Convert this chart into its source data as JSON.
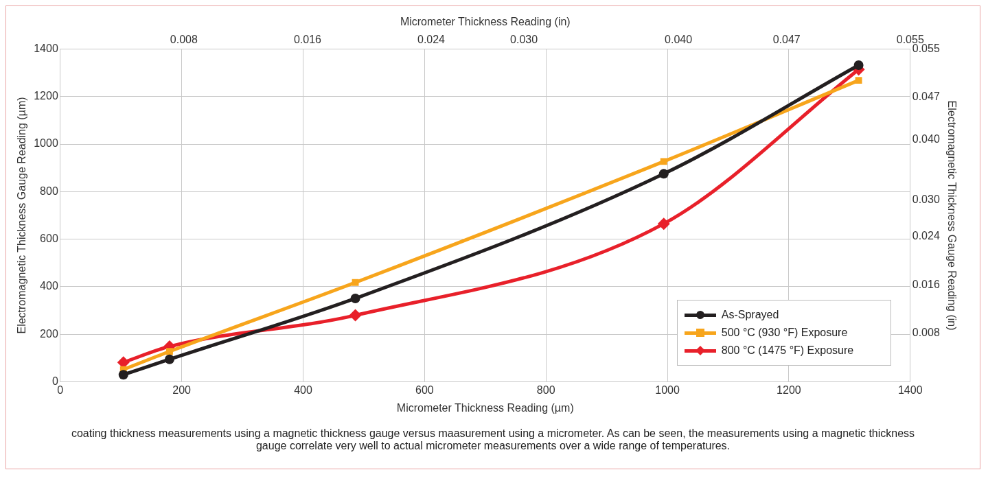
{
  "chart_data": {
    "type": "line",
    "xlabel": "Micrometer Thickness Reading (µm)",
    "ylabel": "Electromagnetic Thickness Gauge Reading (µm)",
    "x2label": "Micrometer Thickness Reading (in)",
    "y2label": "Electromagnetic Thickness Gauge Reading (in)",
    "xlim": [
      0,
      1400
    ],
    "xticks": [
      0,
      200,
      400,
      600,
      800,
      1000,
      1200,
      1400
    ],
    "ylim": [
      0,
      1400
    ],
    "yticks": [
      0,
      200,
      400,
      600,
      800,
      1000,
      1200,
      1400
    ],
    "x2lim": [
      0,
      0.055
    ],
    "x2ticks": [
      {
        "value": 0.008,
        "label": "0.008"
      },
      {
        "value": 0.016,
        "label": "0.016"
      },
      {
        "value": 0.024,
        "label": "0.024"
      },
      {
        "value": 0.03,
        "label": "0.030"
      },
      {
        "value": 0.04,
        "label": "0.040"
      },
      {
        "value": 0.047,
        "label": "0.047"
      },
      {
        "value": 0.055,
        "label": "0.055"
      }
    ],
    "y2lim": [
      0,
      0.055
    ],
    "y2ticks": [
      {
        "value": 0.008,
        "label": "0.008"
      },
      {
        "value": 0.016,
        "label": "0.016"
      },
      {
        "value": 0.024,
        "label": "0.024"
      },
      {
        "value": 0.03,
        "label": "0.030"
      },
      {
        "value": 0.04,
        "label": "0.040"
      },
      {
        "value": 0.047,
        "label": "0.047"
      },
      {
        "value": 0.055,
        "label": "0.055"
      }
    ],
    "grid": true,
    "legend": "bottom right",
    "series": [
      {
        "name": "As-Sprayed",
        "color": "#231f20",
        "marker": "circle",
        "x": [
          104,
          180,
          486,
          994,
          1315
        ],
        "values": [
          30,
          95,
          351,
          875,
          1332
        ]
      },
      {
        "name": "500 °C (930 °F) Exposure",
        "color": "#f7a51c",
        "marker": "square",
        "x": [
          104,
          180,
          486,
          994,
          1315
        ],
        "values": [
          52,
          128,
          418,
          927,
          1268
        ]
      },
      {
        "name": "800 °C (1475 °F) Exposure",
        "color": "#e8202a",
        "marker": "diamond",
        "x": [
          104,
          180,
          486,
          994,
          1315
        ],
        "values": [
          82,
          149,
          280,
          665,
          1314
        ]
      }
    ],
    "annotations": [
      "coating thickness measurements using a magnetic thickness gauge versus maasurement using a micrometer. As can be seen, the measurements using a magnetic thickness gauge correlate very well to actual micrometer measurements over a wide range of temperatures."
    ]
  }
}
